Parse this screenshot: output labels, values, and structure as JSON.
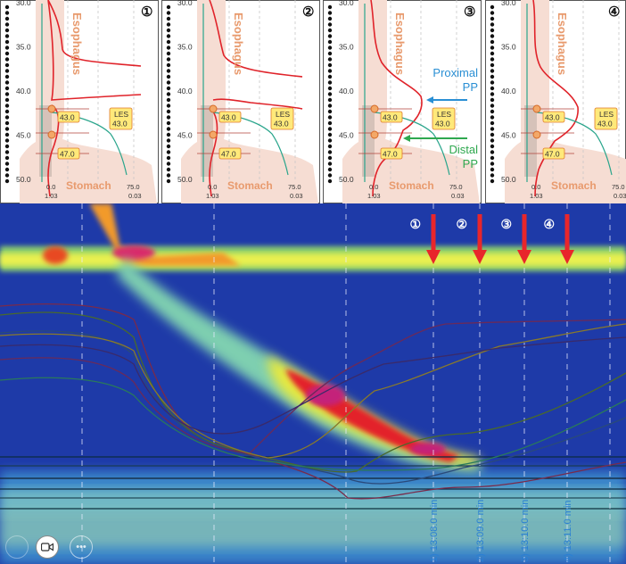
{
  "panels": [
    {
      "number": "①",
      "esophagus": "Esophagus",
      "stomach": "Stomach",
      "les_label": "LES",
      "les_value": "43.0",
      "marker_upper": "43.0",
      "marker_lower": "47.0",
      "y_ticks": [
        "30.0",
        "35.0",
        "40.0",
        "45.0",
        "50.0"
      ],
      "x_tick_left": "0.0",
      "x_tick_right": "75.0",
      "x_sub_left": "1.03",
      "x_sub_right": "0.03",
      "annotations": []
    },
    {
      "number": "②",
      "esophagus": "Esophagus",
      "stomach": "Stomach",
      "les_label": "LES",
      "les_value": "43.0",
      "marker_upper": "43.0",
      "marker_lower": "47.0",
      "y_ticks": [
        "30.0",
        "35.0",
        "40.0",
        "45.0",
        "50.0"
      ],
      "x_tick_left": "0.0",
      "x_tick_right": "75.0",
      "x_sub_left": "1.03",
      "x_sub_right": "0.03",
      "annotations": []
    },
    {
      "number": "③",
      "esophagus": "Esophagus",
      "stomach": "Stomach",
      "les_label": "LES",
      "les_value": "43.0",
      "marker_upper": "43.0",
      "marker_lower": "47.0",
      "y_ticks": [
        "30.0",
        "35.0",
        "40.0",
        "45.0",
        "50.0"
      ],
      "x_tick_left": "0.0",
      "x_tick_right": "75.0",
      "x_sub_left": "1.03",
      "x_sub_right": "0.03",
      "annotations": [
        {
          "line1": "Proximal",
          "line2": "PP",
          "color": "#2a8fd4"
        },
        {
          "line1": "Distal",
          "line2": "PP",
          "color": "#2fa84f"
        }
      ]
    },
    {
      "number": "④",
      "esophagus": "Esophagus",
      "stomach": "Stomach",
      "les_label": "LES",
      "les_value": "43.0",
      "marker_upper": "43.0",
      "marker_lower": "47.0",
      "y_ticks": [
        "30.0",
        "35.0",
        "40.0",
        "45.0",
        "50.0"
      ],
      "x_tick_left": "0.0",
      "x_tick_right": "75.0",
      "x_sub_left": "1.03",
      "x_sub_right": "0.03",
      "annotations": []
    }
  ],
  "heatmap": {
    "time_markers": [
      {
        "number": "①",
        "label": "1) 13:08.0 min"
      },
      {
        "number": "②",
        "label": "2) 13:09.0 min"
      },
      {
        "number": "③",
        "label": "3) 13:10.0 min"
      },
      {
        "number": "④",
        "label": "4) 13:11.0 min"
      }
    ],
    "arrow_color": "#e8262b"
  },
  "chart_data": [
    {
      "type": "line",
      "panel": 1,
      "y_axis_unit": "position",
      "y_ticks": [
        30,
        35,
        40,
        45,
        50
      ],
      "x_ticks": [
        0,
        75
      ],
      "x_sub_ticks": [
        1.03,
        0.03
      ],
      "labels": [
        "Esophagus",
        "Stomach",
        "LES 43.0"
      ],
      "marker_positions": [
        43.0,
        47.0
      ]
    },
    {
      "type": "line",
      "panel": 2,
      "y_ticks": [
        30,
        35,
        40,
        45,
        50
      ],
      "x_ticks": [
        0,
        75
      ],
      "marker_positions": [
        43.0,
        47.0
      ]
    },
    {
      "type": "line",
      "panel": 3,
      "y_ticks": [
        30,
        35,
        40,
        45,
        50
      ],
      "x_ticks": [
        0,
        75
      ],
      "marker_positions": [
        43.0,
        47.0
      ],
      "annotations": [
        "Proximal PP",
        "Distal PP"
      ]
    },
    {
      "type": "line",
      "panel": 4,
      "y_ticks": [
        30,
        35,
        40,
        45,
        50
      ],
      "x_ticks": [
        0,
        75
      ],
      "marker_positions": [
        43.0,
        47.0
      ]
    },
    {
      "type": "heatmap",
      "time_labels": [
        "13:08.0 min",
        "13:09.0 min",
        "13:10.0 min",
        "13:11.0 min"
      ]
    }
  ],
  "colors": {
    "esophagus_fill": "#f6ddd3",
    "label_orange": "#e89a6d",
    "red_curve": "#e0232a",
    "teal_curve": "#2aa58c",
    "marker_box": "#ffe97a",
    "marker_border": "#e07a2a"
  }
}
